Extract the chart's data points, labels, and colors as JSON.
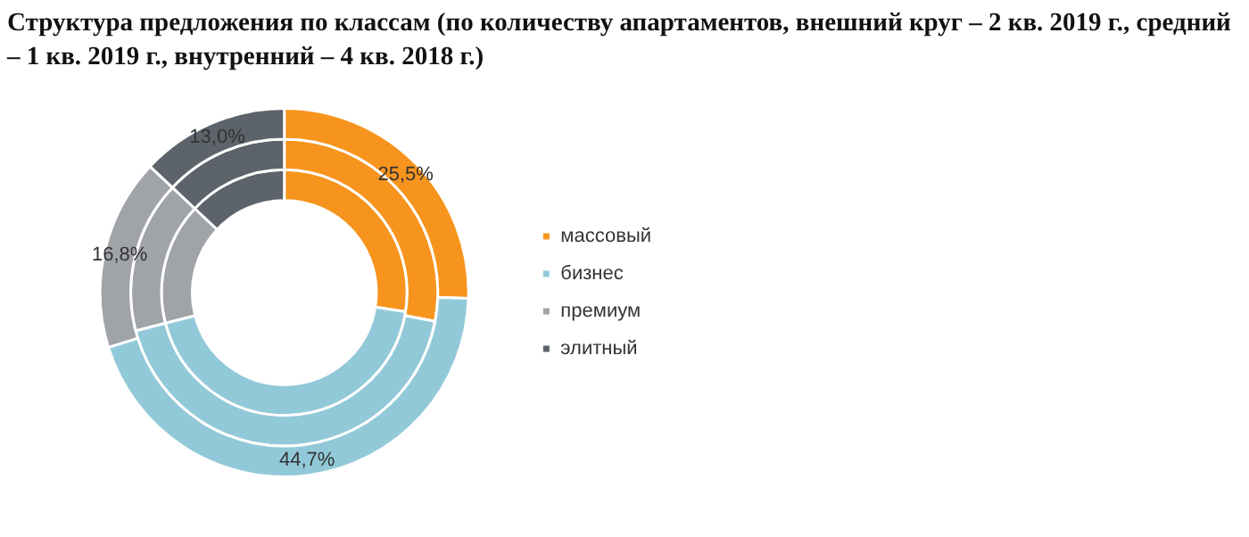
{
  "chart_data": {
    "type": "donut",
    "title": "Структура предложения по классам (по количеству апартаментов, внешний круг – 2 кв. 2019 г., средний – 1 кв. 2019 г., внутренний – 4 кв. 2018 г.)",
    "categories": [
      "массовый",
      "бизнес",
      "премиум",
      "элитный"
    ],
    "colors": [
      "#f7941d",
      "#92c9d9",
      "#a0a3a8",
      "#5d636b"
    ],
    "series": [
      {
        "values": [
          25.5,
          44.7,
          16.8,
          13.0
        ],
        "value_labels": [
          "25,5%",
          "44,7%",
          "16,8%",
          "13,0%"
        ]
      },
      {
        "values": [
          28,
          43,
          16,
          13
        ]
      },
      {
        "values": [
          27.5,
          43.5,
          16,
          13
        ]
      }
    ],
    "legend": "right"
  }
}
